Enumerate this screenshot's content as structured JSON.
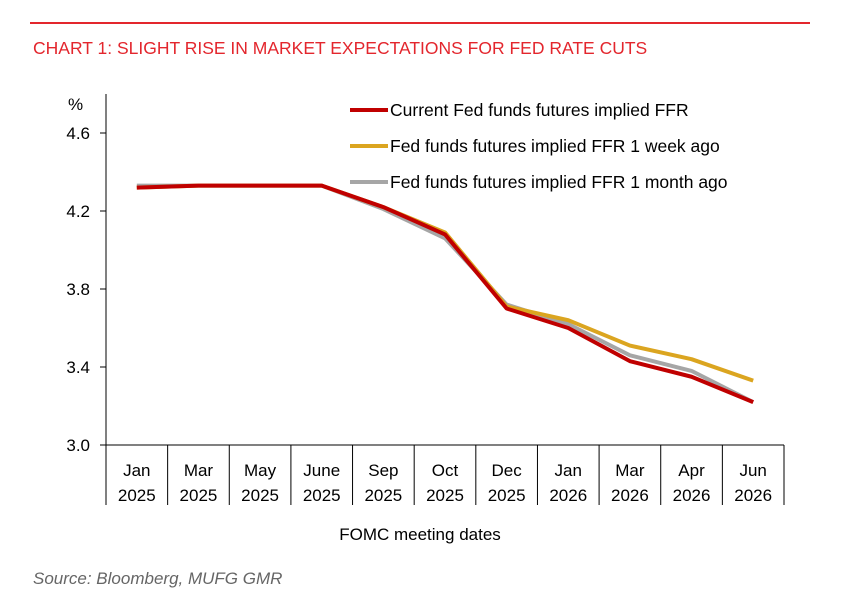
{
  "title": "CHART 1: SLIGHT RISE IN MARKET EXPECTATIONS FOR FED RATE CUTS",
  "source": "Source: Bloomberg, MUFG GMR",
  "chart_data": {
    "type": "line",
    "title": "CHART 1: SLIGHT RISE IN MARKET EXPECTATIONS FOR FED RATE CUTS",
    "xlabel": "FOMC meeting dates",
    "ylabel": "%",
    "ylim": [
      3.0,
      4.8
    ],
    "yticks": [
      "3.0",
      "3.4",
      "3.8",
      "4.2",
      "4.6"
    ],
    "grid": false,
    "legend": "top-right",
    "categories": [
      [
        "Jan",
        "2025"
      ],
      [
        "Mar",
        "2025"
      ],
      [
        "May",
        "2025"
      ],
      [
        "June",
        "2025"
      ],
      [
        "Sep",
        "2025"
      ],
      [
        "Oct",
        "2025"
      ],
      [
        "Dec",
        "2025"
      ],
      [
        "Jan",
        "2026"
      ],
      [
        "Mar",
        "2026"
      ],
      [
        "Apr",
        "2026"
      ],
      [
        "Jun",
        "2026"
      ]
    ],
    "series": [
      {
        "name": "Current Fed funds futures implied FFR",
        "color": "#c00000",
        "values": [
          4.32,
          4.33,
          4.33,
          4.33,
          4.22,
          4.08,
          3.7,
          3.6,
          3.43,
          3.35,
          3.22
        ]
      },
      {
        "name": "Fed funds futures implied FFR 1 week ago",
        "color": "#dba520",
        "values": [
          4.32,
          4.33,
          4.33,
          4.33,
          4.22,
          4.09,
          3.71,
          3.64,
          3.51,
          3.44,
          3.33
        ]
      },
      {
        "name": "Fed funds futures implied FFR 1 month ago",
        "color": "#a6a6a6",
        "values": [
          4.33,
          4.33,
          4.33,
          4.33,
          4.21,
          4.06,
          3.72,
          3.62,
          3.46,
          3.38,
          3.22
        ]
      }
    ]
  }
}
